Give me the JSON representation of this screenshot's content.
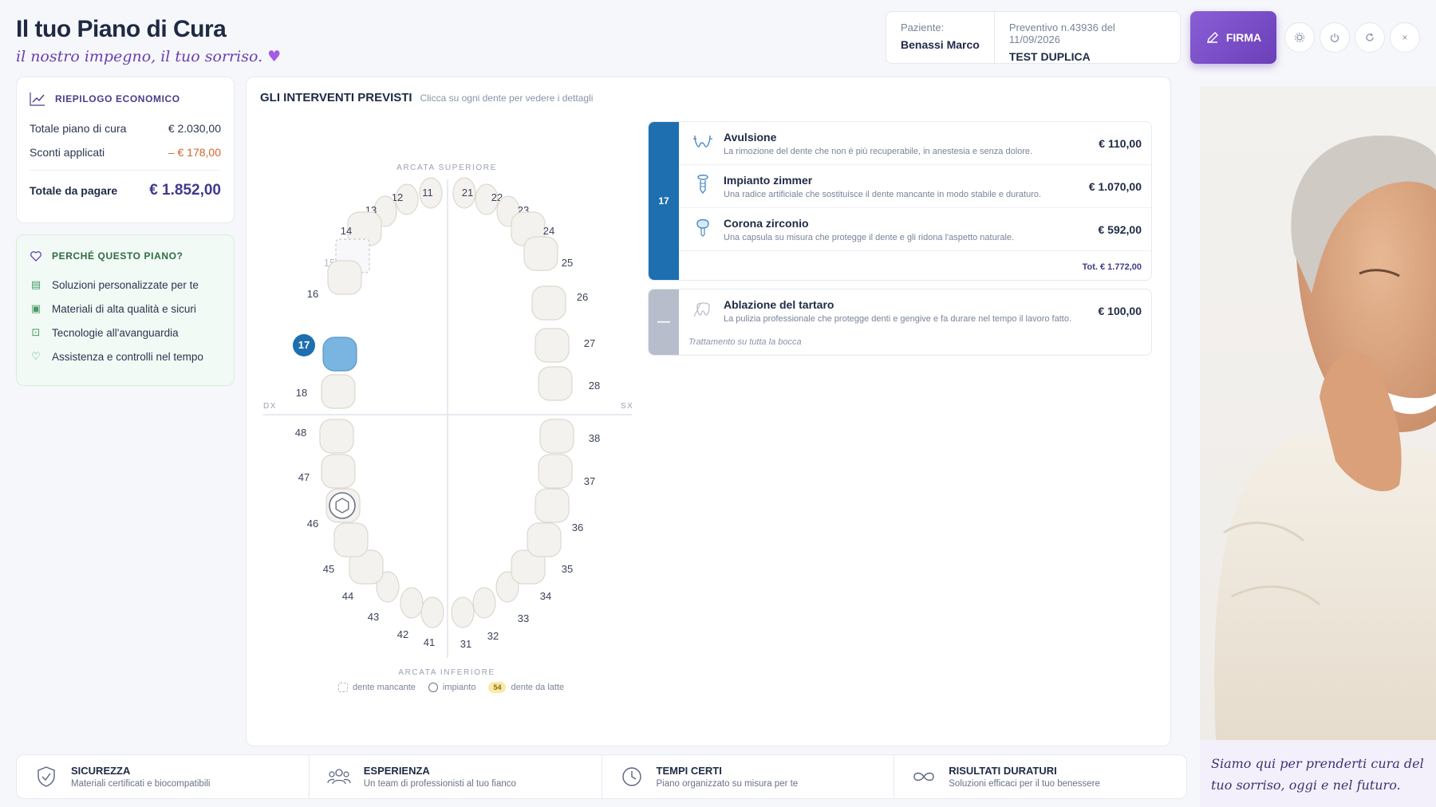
{
  "header": {
    "title": "Il tuo Piano di Cura",
    "subtitle": "il nostro impegno, il tuo sorriso.",
    "heart": "♥"
  },
  "patient": {
    "label": "Paziente:",
    "name": "Benassi Marco",
    "quote_ref": "Preventivo n.43936 del 11/09/2026",
    "quote_title": "TEST DUPLICA"
  },
  "toolbar": {
    "sign_label": "FIRMA",
    "icons": [
      "gear-icon",
      "power-icon",
      "refresh-icon",
      "close-icon"
    ],
    "close_glyph": "×"
  },
  "economic": {
    "title": "RIEPILOGO ECONOMICO",
    "rows": [
      {
        "label": "Totale piano di cura",
        "value": "€ 2.030,00"
      },
      {
        "label": "Sconti applicati",
        "value": "– € 178,00"
      }
    ],
    "total_label": "Totale da pagare",
    "total_value": "€ 1.852,00"
  },
  "why": {
    "title": "PERCHÉ QUESTO PIANO?",
    "items": [
      "Soluzioni personalizzate per te",
      "Materiali di alta qualità e sicuri",
      "Tecnologie all'avanguardia",
      "Assistenza e controlli nel tempo"
    ]
  },
  "main": {
    "title": "GLI INTERVENTI PREVISTI",
    "hint": "Clicca su ogni dente per vedere i dettagli"
  },
  "chart": {
    "upper_label": "ARCATA SUPERIORE",
    "lower_label": "ARCATA INFERIORE",
    "dx": "DX",
    "sx": "SX",
    "selected_tooth": "17",
    "missing_tooth": "15",
    "implant_tooth": "46",
    "upper_right": [
      "11",
      "12",
      "13",
      "14",
      "15",
      "16",
      "17",
      "18"
    ],
    "upper_left": [
      "21",
      "22",
      "23",
      "24",
      "25",
      "26",
      "27",
      "28"
    ],
    "lower_right": [
      "41",
      "42",
      "43",
      "44",
      "45",
      "46",
      "47",
      "48"
    ],
    "lower_left": [
      "31",
      "32",
      "33",
      "34",
      "35",
      "36",
      "37",
      "38"
    ]
  },
  "legend": {
    "missing": "dente mancante",
    "implant": "impianto",
    "milk_badge": "54",
    "milk": "dente da latte"
  },
  "treatments": {
    "group1": {
      "tooth": "17",
      "color": "#1e6fb0",
      "items": [
        {
          "icon": "extraction-icon",
          "name": "Avulsione",
          "desc": "La rimozione del dente che non è più recuperabile, in anestesia e senza dolore.",
          "price": "€ 110,00"
        },
        {
          "icon": "implant-icon",
          "name": "Impianto zimmer",
          "desc": "Una radice artificiale che sostituisce il dente mancante in modo stabile e duraturo.",
          "price": "€ 1.070,00"
        },
        {
          "icon": "crown-icon",
          "name": "Corona zirconio",
          "desc": "Una capsula su misura che protegge il dente e gli ridona l'aspetto naturale.",
          "price": "€ 592,00"
        }
      ],
      "total": "Tot. € 1.772,00"
    },
    "group2": {
      "tooth": "—",
      "color": "#b8bdcb",
      "items": [
        {
          "icon": "scaling-icon",
          "name": "Ablazione del tartaro",
          "desc": "La pulizia professionale che protegge denti e gengive e fa durare nel tempo il lavoro fatto.",
          "price": "€ 100,00"
        }
      ],
      "note": "Trattamento su tutta la bocca"
    }
  },
  "quote": "Siamo qui per prenderti cura del tuo sorriso, oggi e nel futuro.",
  "footer": [
    {
      "icon": "shield-icon",
      "title": "SICUREZZA",
      "sub": "Materiali certificati e biocompatibili"
    },
    {
      "icon": "team-icon",
      "title": "ESPERIENZA",
      "sub": "Un team di professionisti al tuo fianco"
    },
    {
      "icon": "clock-icon",
      "title": "TEMPI CERTI",
      "sub": "Piano organizzato su misura per te"
    },
    {
      "icon": "infinity-icon",
      "title": "RISULTATI DURATURI",
      "sub": "Soluzioni efficaci per il tuo benessere"
    }
  ],
  "colors": {
    "accent": "#6a3fb8",
    "selected_tooth": "#7ab4e0",
    "tooth_badge": "#1e6fb0",
    "discount": "#d0662a"
  }
}
